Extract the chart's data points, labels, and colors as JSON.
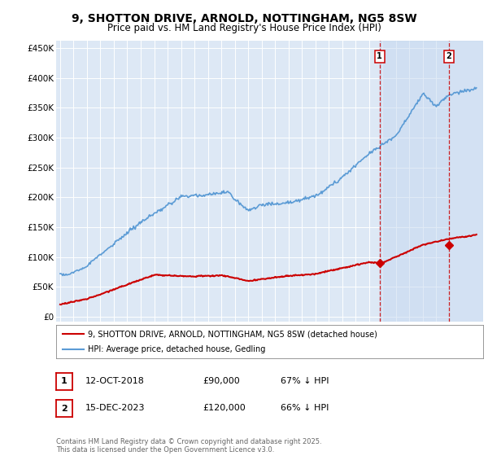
{
  "title": "9, SHOTTON DRIVE, ARNOLD, NOTTINGHAM, NG5 8SW",
  "subtitle": "Price paid vs. HM Land Registry's House Price Index (HPI)",
  "title_fontsize": 10,
  "subtitle_fontsize": 8.5,
  "background_color": "#ffffff",
  "plot_bg_color": "#dde8f5",
  "grid_color": "#ffffff",
  "hpi_color": "#5b9bd5",
  "price_color": "#cc0000",
  "vline_color": "#cc0000",
  "shade_color": "#c8d8f0",
  "hatch_color": "#aabbdd",
  "yticks": [
    0,
    50000,
    100000,
    150000,
    200000,
    250000,
    300000,
    350000,
    400000,
    450000
  ],
  "ytick_labels": [
    "£0",
    "£50K",
    "£100K",
    "£150K",
    "£200K",
    "£250K",
    "£300K",
    "£350K",
    "£400K",
    "£450K"
  ],
  "year_start": 1995,
  "year_end": 2026,
  "legend_items": [
    {
      "label": "9, SHOTTON DRIVE, ARNOLD, NOTTINGHAM, NG5 8SW (detached house)",
      "color": "#cc0000",
      "lw": 1.5
    },
    {
      "label": "HPI: Average price, detached house, Gedling",
      "color": "#5b9bd5",
      "lw": 1.5
    }
  ],
  "annotation1": {
    "num": "1",
    "date": "12-OCT-2018",
    "price": "£90,000",
    "hpi": "67% ↓ HPI",
    "year": 2018.79,
    "price_val": 90000
  },
  "annotation2": {
    "num": "2",
    "date": "15-DEC-2023",
    "price": "£120,000",
    "hpi": "66% ↓ HPI",
    "year": 2023.96,
    "price_val": 120000
  },
  "footnote": "Contains HM Land Registry data © Crown copyright and database right 2025.\nThis data is licensed under the Open Government Licence v3.0.",
  "footnote_fontsize": 6.0
}
